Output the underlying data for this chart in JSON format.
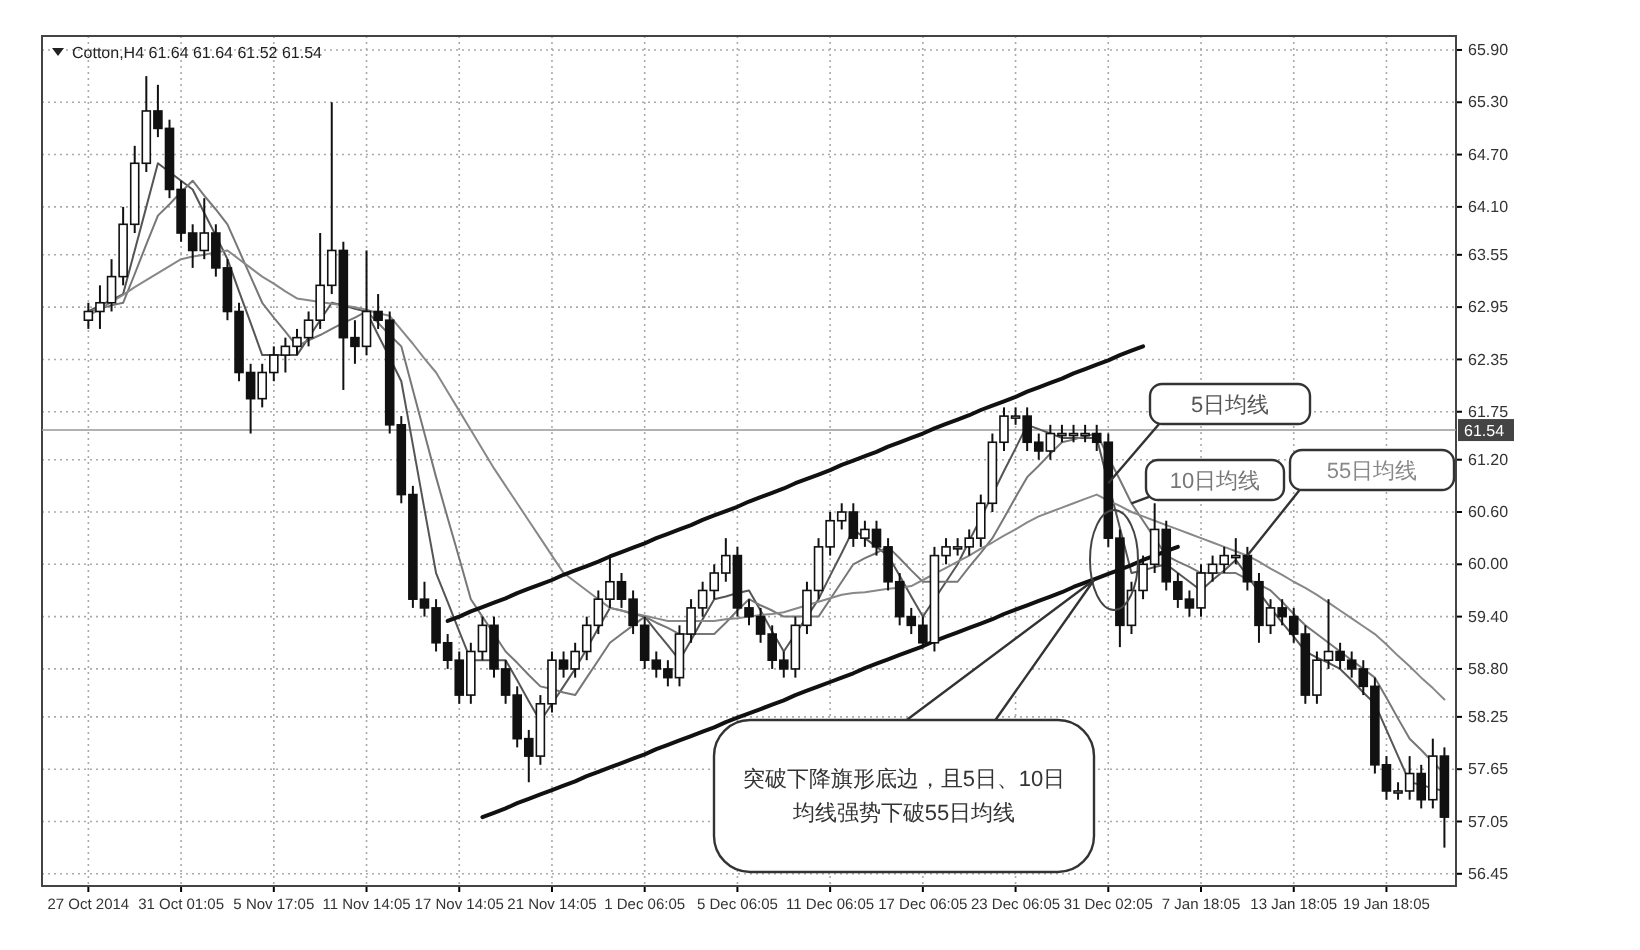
{
  "chart_data": {
    "type": "candlestick",
    "title": "Cotton,H4 61.64 61.64 61.52 61.54",
    "categories": [
      "27 Oct 2014",
      null,
      null,
      null,
      null,
      null,
      null,
      null,
      "31 Oct 01:05",
      null,
      null,
      null,
      null,
      null,
      null,
      null,
      "5 Nov 17:05",
      null,
      null,
      null,
      null,
      null,
      null,
      null,
      "11 Nov 14:05",
      null,
      null,
      null,
      null,
      null,
      null,
      null,
      "17 Nov 14:05",
      null,
      null,
      null,
      null,
      null,
      null,
      null,
      "21 Nov 14:05",
      null,
      null,
      null,
      null,
      null,
      null,
      null,
      "1 Dec 06:05",
      null,
      null,
      null,
      null,
      null,
      null,
      null,
      "5 Dec 06:05",
      null,
      null,
      null,
      null,
      null,
      null,
      null,
      "11 Dec 06:05",
      null,
      null,
      null,
      null,
      null,
      null,
      null,
      "17 Dec 06:05",
      null,
      null,
      null,
      null,
      null,
      null,
      null,
      "23 Dec 06:05",
      null,
      null,
      null,
      null,
      null,
      null,
      null,
      "31 Dec 02:05",
      null,
      null,
      null,
      null,
      null,
      null,
      null,
      "7 Jan 18:05",
      null,
      null,
      null,
      null,
      null,
      null,
      null,
      "13 Jan 18:05",
      null,
      null,
      null,
      null,
      null,
      null,
      null,
      "19 Jan 18:05",
      null,
      null,
      null,
      null,
      null
    ],
    "ohlc": [
      [
        62.8,
        63.0,
        62.7,
        62.9
      ],
      [
        62.9,
        63.2,
        62.7,
        63.0
      ],
      [
        63.0,
        63.5,
        62.9,
        63.3
      ],
      [
        63.3,
        64.1,
        63.2,
        63.9
      ],
      [
        63.9,
        64.8,
        63.8,
        64.6
      ],
      [
        64.6,
        65.6,
        64.5,
        65.2
      ],
      [
        65.2,
        65.5,
        64.9,
        65.0
      ],
      [
        65.0,
        65.1,
        64.2,
        64.3
      ],
      [
        64.3,
        64.4,
        63.7,
        63.8
      ],
      [
        63.8,
        63.9,
        63.4,
        63.6
      ],
      [
        63.6,
        64.2,
        63.5,
        63.8
      ],
      [
        63.8,
        63.9,
        63.3,
        63.4
      ],
      [
        63.4,
        63.5,
        62.8,
        62.9
      ],
      [
        62.9,
        63.0,
        62.1,
        62.2
      ],
      [
        62.2,
        62.3,
        61.5,
        61.9
      ],
      [
        61.9,
        62.3,
        61.8,
        62.2
      ],
      [
        62.2,
        62.5,
        62.1,
        62.4
      ],
      [
        62.4,
        62.6,
        62.2,
        62.5
      ],
      [
        62.5,
        62.7,
        62.4,
        62.6
      ],
      [
        62.6,
        62.9,
        62.5,
        62.8
      ],
      [
        62.8,
        63.8,
        62.7,
        63.2
      ],
      [
        63.2,
        65.3,
        63.1,
        63.6
      ],
      [
        63.6,
        63.7,
        62.0,
        62.6
      ],
      [
        62.6,
        62.8,
        62.3,
        62.5
      ],
      [
        62.5,
        63.6,
        62.4,
        62.9
      ],
      [
        62.9,
        63.1,
        62.7,
        62.8
      ],
      [
        62.8,
        62.9,
        61.5,
        61.6
      ],
      [
        61.6,
        61.7,
        60.7,
        60.8
      ],
      [
        60.8,
        60.9,
        59.5,
        59.6
      ],
      [
        59.6,
        59.8,
        59.4,
        59.5
      ],
      [
        59.5,
        59.6,
        59.0,
        59.1
      ],
      [
        59.1,
        59.2,
        58.8,
        58.9
      ],
      [
        58.9,
        59.0,
        58.4,
        58.5
      ],
      [
        58.5,
        59.1,
        58.4,
        59.0
      ],
      [
        59.0,
        59.4,
        58.9,
        59.3
      ],
      [
        59.3,
        59.4,
        58.7,
        58.8
      ],
      [
        58.8,
        58.9,
        58.4,
        58.5
      ],
      [
        58.5,
        58.6,
        57.9,
        58.0
      ],
      [
        58.0,
        58.1,
        57.5,
        57.8
      ],
      [
        57.8,
        58.5,
        57.7,
        58.4
      ],
      [
        58.4,
        59.0,
        58.3,
        58.9
      ],
      [
        58.9,
        59.0,
        58.7,
        58.8
      ],
      [
        58.8,
        59.1,
        58.7,
        59.0
      ],
      [
        59.0,
        59.4,
        58.9,
        59.3
      ],
      [
        59.3,
        59.7,
        59.2,
        59.6
      ],
      [
        59.6,
        60.1,
        59.5,
        59.8
      ],
      [
        59.8,
        59.9,
        59.5,
        59.6
      ],
      [
        59.6,
        59.7,
        59.2,
        59.3
      ],
      [
        59.3,
        59.4,
        58.8,
        58.9
      ],
      [
        58.9,
        59.0,
        58.7,
        58.8
      ],
      [
        58.8,
        58.9,
        58.6,
        58.7
      ],
      [
        58.7,
        59.3,
        58.6,
        59.2
      ],
      [
        59.2,
        59.6,
        59.1,
        59.5
      ],
      [
        59.5,
        59.8,
        59.4,
        59.7
      ],
      [
        59.7,
        60.0,
        59.6,
        59.9
      ],
      [
        59.9,
        60.3,
        59.8,
        60.1
      ],
      [
        60.1,
        60.2,
        59.4,
        59.5
      ],
      [
        59.5,
        59.6,
        59.3,
        59.4
      ],
      [
        59.4,
        59.5,
        59.1,
        59.2
      ],
      [
        59.2,
        59.3,
        58.8,
        58.9
      ],
      [
        58.9,
        59.0,
        58.7,
        58.8
      ],
      [
        58.8,
        59.4,
        58.7,
        59.3
      ],
      [
        59.3,
        59.8,
        59.2,
        59.7
      ],
      [
        59.7,
        60.3,
        59.6,
        60.2
      ],
      [
        60.2,
        60.6,
        60.1,
        60.5
      ],
      [
        60.5,
        60.7,
        60.4,
        60.6
      ],
      [
        60.6,
        60.7,
        60.2,
        60.3
      ],
      [
        60.3,
        60.5,
        60.2,
        60.4
      ],
      [
        60.4,
        60.5,
        60.1,
        60.2
      ],
      [
        60.2,
        60.3,
        59.7,
        59.8
      ],
      [
        59.8,
        59.9,
        59.3,
        59.4
      ],
      [
        59.4,
        59.5,
        59.2,
        59.3
      ],
      [
        59.3,
        59.4,
        59.05,
        59.1
      ],
      [
        59.1,
        60.2,
        59.0,
        60.1
      ],
      [
        60.1,
        60.3,
        60.0,
        60.2
      ],
      [
        60.2,
        60.3,
        60.1,
        60.2
      ],
      [
        60.2,
        60.4,
        60.1,
        60.3
      ],
      [
        60.3,
        60.8,
        60.2,
        60.7
      ],
      [
        60.7,
        61.5,
        60.6,
        61.4
      ],
      [
        61.4,
        61.8,
        61.3,
        61.7
      ],
      [
        61.7,
        61.8,
        61.6,
        61.7
      ],
      [
        61.7,
        61.8,
        61.3,
        61.4
      ],
      [
        61.4,
        61.5,
        61.2,
        61.3
      ],
      [
        61.3,
        61.6,
        61.2,
        61.5
      ],
      [
        61.5,
        61.6,
        61.4,
        61.5
      ],
      [
        61.5,
        61.6,
        61.4,
        61.5
      ],
      [
        61.5,
        61.6,
        61.4,
        61.5
      ],
      [
        61.5,
        61.6,
        61.3,
        61.4
      ],
      [
        61.4,
        61.5,
        60.2,
        60.3
      ],
      [
        60.3,
        60.4,
        59.05,
        59.3
      ],
      [
        59.3,
        59.8,
        59.2,
        59.7
      ],
      [
        59.7,
        60.1,
        59.6,
        60.0
      ],
      [
        60.0,
        60.7,
        59.9,
        60.4
      ],
      [
        60.4,
        60.5,
        59.7,
        59.8
      ],
      [
        59.8,
        59.9,
        59.5,
        59.6
      ],
      [
        59.6,
        59.7,
        59.4,
        59.5
      ],
      [
        59.5,
        60.0,
        59.4,
        59.9
      ],
      [
        59.9,
        60.1,
        59.8,
        60.0
      ],
      [
        60.0,
        60.2,
        59.9,
        60.1
      ],
      [
        60.1,
        60.3,
        60.0,
        60.1
      ],
      [
        60.1,
        60.2,
        59.7,
        59.8
      ],
      [
        59.8,
        59.9,
        59.1,
        59.3
      ],
      [
        59.3,
        59.6,
        59.2,
        59.5
      ],
      [
        59.5,
        59.6,
        59.3,
        59.4
      ],
      [
        59.4,
        59.5,
        59.1,
        59.2
      ],
      [
        59.2,
        59.3,
        58.4,
        58.5
      ],
      [
        58.5,
        59.0,
        58.4,
        58.9
      ],
      [
        58.9,
        59.6,
        58.8,
        59.0
      ],
      [
        59.0,
        59.1,
        58.8,
        58.9
      ],
      [
        58.9,
        59.0,
        58.7,
        58.8
      ],
      [
        58.8,
        58.9,
        58.5,
        58.6
      ],
      [
        58.6,
        58.7,
        57.6,
        57.7
      ],
      [
        57.7,
        57.8,
        57.3,
        57.4
      ],
      [
        57.4,
        57.5,
        57.3,
        57.4
      ],
      [
        57.4,
        57.8,
        57.3,
        57.6
      ],
      [
        57.6,
        57.7,
        57.2,
        57.3
      ],
      [
        57.3,
        58.0,
        57.2,
        57.8
      ],
      [
        57.8,
        57.9,
        56.75,
        57.1
      ]
    ],
    "series": [
      {
        "type": "line",
        "name": "5日均线",
        "color": "#555555",
        "values": [
          62.9,
          62.97,
          63.03,
          63.1,
          63.6,
          64.1,
          64.6,
          64.5,
          64.4,
          64.3,
          64.03,
          63.77,
          63.5,
          63.13,
          62.77,
          62.4,
          62.4,
          62.4,
          62.4,
          62.6,
          62.8,
          63.0,
          62.97,
          62.93,
          62.9,
          62.63,
          62.37,
          62.1,
          61.37,
          60.63,
          59.9,
          59.57,
          59.23,
          58.9,
          58.9,
          58.9,
          58.9,
          58.67,
          58.43,
          58.2,
          58.4,
          58.6,
          58.8,
          59.03,
          59.27,
          59.5,
          59.47,
          59.43,
          59.4,
          59.23,
          59.07,
          58.9,
          59.13,
          59.37,
          59.6,
          59.63,
          59.67,
          59.7,
          59.47,
          59.23,
          59.0,
          59.2,
          59.4,
          59.6,
          59.87,
          60.13,
          60.4,
          60.3,
          60.2,
          60.1,
          59.87,
          59.63,
          59.4,
          59.6,
          59.8,
          60.0,
          60.27,
          60.53,
          60.8,
          61.07,
          61.33,
          61.6,
          61.55,
          61.5,
          61.45,
          61.45,
          61.45,
          61.45,
          60.93,
          60.42,
          59.9,
          59.93,
          59.97,
          60.0,
          59.9,
          59.8,
          59.7,
          59.82,
          59.93,
          60.05,
          59.87,
          59.68,
          59.5,
          59.33,
          59.17,
          59.0,
          58.93,
          58.87,
          58.8,
          58.67,
          58.53,
          58.4,
          58.1,
          57.8,
          57.5,
          57.47,
          57.43,
          57.4
        ]
      },
      {
        "type": "line",
        "name": "10日均线",
        "color": "#777777",
        "values": [
          62.9,
          62.93,
          62.97,
          63.0,
          63.33,
          63.67,
          64.0,
          64.13,
          64.27,
          64.4,
          64.23,
          64.07,
          63.9,
          63.6,
          63.3,
          63.0,
          62.83,
          62.67,
          62.5,
          62.57,
          62.63,
          62.7,
          62.77,
          62.83,
          62.9,
          62.77,
          62.63,
          62.5,
          62.0,
          61.5,
          61.0,
          60.53,
          60.07,
          59.6,
          59.4,
          59.2,
          59.0,
          58.87,
          58.73,
          58.6,
          58.57,
          58.53,
          58.5,
          58.7,
          58.9,
          59.1,
          59.2,
          59.3,
          59.4,
          59.33,
          59.27,
          59.2,
          59.2,
          59.2,
          59.2,
          59.33,
          59.47,
          59.6,
          59.53,
          59.47,
          59.4,
          59.4,
          59.4,
          59.4,
          59.6,
          59.8,
          60.0,
          60.07,
          60.13,
          60.2,
          60.07,
          59.93,
          59.8,
          59.8,
          59.8,
          59.8,
          59.97,
          60.13,
          60.3,
          60.53,
          60.77,
          61.0,
          61.13,
          61.27,
          61.4,
          61.43,
          61.47,
          61.5,
          61.23,
          60.97,
          60.7,
          60.5,
          60.3,
          60.1,
          60.03,
          59.97,
          59.9,
          59.9,
          59.9,
          59.9,
          59.83,
          59.77,
          59.7,
          59.57,
          59.43,
          59.3,
          59.2,
          59.1,
          59.0,
          58.9,
          58.8,
          58.7,
          58.47,
          58.23,
          58.0,
          57.87,
          57.73,
          57.6
        ]
      },
      {
        "type": "line",
        "name": "55日均线",
        "color": "#888888",
        "values": [
          62.85,
          62.93,
          63.01,
          63.09,
          63.18,
          63.26,
          63.34,
          63.42,
          63.5,
          63.53,
          63.55,
          63.58,
          63.6,
          63.5,
          63.4,
          63.3,
          63.22,
          63.13,
          63.05,
          63.03,
          63.01,
          62.99,
          62.97,
          62.95,
          62.92,
          62.88,
          62.85,
          62.69,
          62.53,
          62.36,
          62.2,
          61.98,
          61.76,
          61.54,
          61.32,
          61.1,
          60.9,
          60.7,
          60.5,
          60.3,
          60.1,
          59.9,
          59.8,
          59.7,
          59.6,
          59.5,
          59.47,
          59.44,
          59.41,
          59.38,
          59.35,
          59.35,
          59.35,
          59.35,
          59.35,
          59.37,
          59.38,
          59.4,
          59.42,
          59.43,
          59.45,
          59.49,
          59.53,
          59.57,
          59.61,
          59.65,
          59.67,
          59.68,
          59.7,
          59.72,
          59.73,
          59.75,
          59.82,
          59.89,
          59.96,
          60.03,
          60.1,
          60.18,
          60.25,
          60.33,
          60.4,
          60.48,
          60.55,
          60.6,
          60.65,
          60.7,
          60.75,
          60.8,
          60.73,
          60.67,
          60.6,
          60.55,
          60.5,
          60.45,
          60.4,
          60.35,
          60.3,
          60.25,
          60.2,
          60.15,
          60.1,
          60.03,
          59.95,
          59.88,
          59.8,
          59.73,
          59.65,
          59.56,
          59.47,
          59.38,
          59.29,
          59.2,
          59.08,
          58.95,
          58.83,
          58.7,
          58.58,
          58.45
        ]
      },
      {
        "type": "line",
        "color": "#111111",
        "values": [
          null,
          null,
          null,
          null,
          null,
          null,
          null,
          null,
          null,
          null,
          null,
          null,
          null,
          null,
          null,
          null,
          null,
          null,
          null,
          null,
          null,
          null,
          null,
          null,
          null,
          null,
          null,
          null,
          null,
          null,
          null,
          59.35,
          59.4,
          59.46,
          59.51,
          59.56,
          59.61,
          59.67,
          59.72,
          59.77,
          59.82,
          59.88,
          59.93,
          59.98,
          60.03,
          60.09,
          60.14,
          60.19,
          60.24,
          60.3,
          60.35,
          60.4,
          60.45,
          60.51,
          60.56,
          60.61,
          60.66,
          60.72,
          60.77,
          60.82,
          60.87,
          60.93,
          60.98,
          61.03,
          61.08,
          61.14,
          61.19,
          61.24,
          61.29,
          61.35,
          61.4,
          61.45,
          61.5,
          61.56,
          61.61,
          61.66,
          61.71,
          61.77,
          61.82,
          61.87,
          61.92,
          61.98,
          62.03,
          62.08,
          62.13,
          62.19,
          62.24,
          62.29,
          62.34,
          62.4,
          62.45,
          62.5,
          null,
          null,
          null,
          null,
          null,
          null,
          null,
          null,
          null,
          null,
          null,
          null,
          null,
          null,
          null,
          null,
          null,
          null,
          null,
          null,
          null,
          null,
          null,
          null,
          null,
          null
        ]
      },
      {
        "type": "line",
        "color": "#111111",
        "values": [
          null,
          null,
          null,
          null,
          null,
          null,
          null,
          null,
          null,
          null,
          null,
          null,
          null,
          null,
          null,
          null,
          null,
          null,
          null,
          null,
          null,
          null,
          null,
          null,
          null,
          null,
          null,
          null,
          null,
          null,
          null,
          null,
          null,
          null,
          57.1,
          57.15,
          57.2,
          57.26,
          57.31,
          57.36,
          57.41,
          57.46,
          57.51,
          57.57,
          57.62,
          57.67,
          57.72,
          57.77,
          57.82,
          57.88,
          57.93,
          57.98,
          58.03,
          58.08,
          58.13,
          58.19,
          58.24,
          58.29,
          58.34,
          58.39,
          58.44,
          58.5,
          58.55,
          58.6,
          58.65,
          58.7,
          58.75,
          58.81,
          58.86,
          58.91,
          58.96,
          59.01,
          59.06,
          59.12,
          59.17,
          59.22,
          59.27,
          59.32,
          59.37,
          59.43,
          59.48,
          59.53,
          59.58,
          59.63,
          59.68,
          59.74,
          59.79,
          59.84,
          59.89,
          59.94,
          59.99,
          60.05,
          60.1,
          60.15,
          60.2,
          null,
          null,
          null,
          null,
          null,
          null,
          null,
          null,
          null,
          null,
          null,
          null,
          null,
          null,
          null,
          null,
          null,
          null,
          null,
          null,
          null,
          null,
          null
        ]
      }
    ],
    "ylim": [
      56.31,
      66.06
    ],
    "yticks": [
      56.45,
      57.05,
      57.65,
      58.25,
      {
        "value": 58.8,
        "label": "58.80"
      },
      {
        "value": 59.4,
        "label": "59.40"
      },
      {
        "value": 60,
        "label": "60.00"
      },
      {
        "value": 60.6,
        "label": "60.60"
      },
      {
        "value": 61.2,
        "label": "61.20"
      },
      61.75,
      62.35,
      62.95,
      63.55,
      {
        "value": 64.1,
        "label": "64.10"
      },
      {
        "value": 64.7,
        "label": "64.70"
      },
      {
        "value": 65.3,
        "label": "65.30"
      },
      {
        "value": 65.9,
        "label": "65.90"
      }
    ],
    "grid": true,
    "ref_lines": [
      {
        "axis": "y",
        "value": 61.54,
        "label": "61.54",
        "color": "#999999"
      }
    ],
    "annotations": [
      "突破下降旗形底边，且5日、10日均线强势下破55日均线"
    ]
  }
}
